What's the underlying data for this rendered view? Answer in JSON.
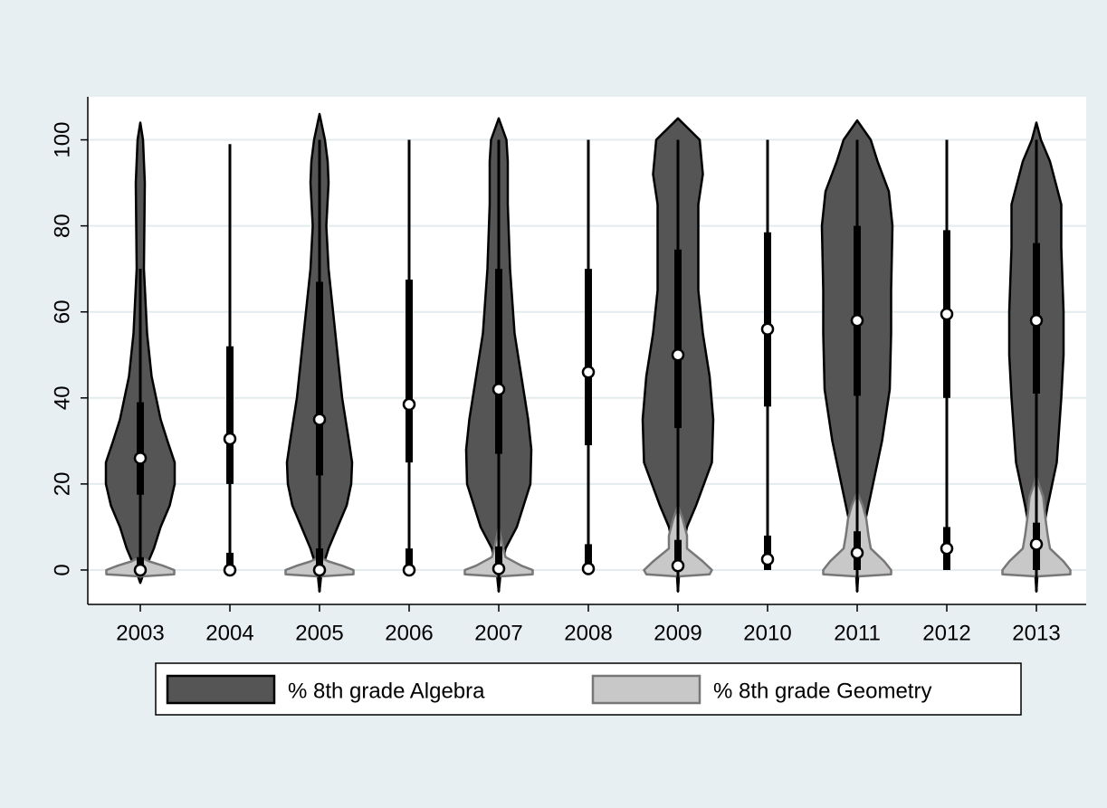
{
  "chart_data": {
    "type": "violin",
    "categories": [
      "2003",
      "2004",
      "2005",
      "2006",
      "2007",
      "2008",
      "2009",
      "2010",
      "2011",
      "2012",
      "2013"
    ],
    "ylim": [
      -8,
      110
    ],
    "yticks": [
      0,
      20,
      40,
      60,
      80,
      100
    ],
    "grid": true,
    "series": [
      {
        "name": "% 8th grade Algebra",
        "color": "#555555",
        "median": [
          26,
          30.5,
          35,
          38.5,
          42,
          46,
          50,
          56,
          58,
          59.5,
          58
        ],
        "q1": [
          17.5,
          20,
          22,
          25,
          27,
          29,
          33,
          38,
          40.5,
          40,
          41
        ],
        "q3": [
          39,
          52,
          67,
          67.5,
          70,
          70,
          74.5,
          78.5,
          80,
          79,
          76
        ],
        "min": [
          -1,
          0,
          -5,
          0,
          -5,
          0,
          -5,
          0,
          -5,
          0,
          -5
        ],
        "max": [
          70,
          99,
          100,
          100,
          100,
          100,
          100,
          100,
          100,
          100,
          100
        ],
        "density": [
          {
            "y": [
              -3,
              0,
              5,
              10,
              15,
              20,
              25,
              30,
              35,
              45,
              55,
              70,
              90,
              100,
              104
            ],
            "width": [
              0,
              0.1,
              0.3,
              0.45,
              0.65,
              0.76,
              0.76,
              0.6,
              0.45,
              0.25,
              0.15,
              0.08,
              0.1,
              0.06,
              0
            ]
          },
          null,
          {
            "y": [
              -5,
              0,
              5,
              10,
              15,
              20,
              25,
              30,
              40,
              50,
              60,
              70,
              80,
              90,
              95,
              100,
              106
            ],
            "width": [
              0,
              0.05,
              0.2,
              0.4,
              0.6,
              0.7,
              0.72,
              0.65,
              0.5,
              0.4,
              0.3,
              0.2,
              0.15,
              0.2,
              0.18,
              0.12,
              0
            ]
          },
          null,
          {
            "y": [
              -5,
              0,
              5,
              10,
              20,
              28,
              35,
              45,
              55,
              70,
              85,
              95,
              100,
              105
            ],
            "width": [
              0,
              0.05,
              0.15,
              0.4,
              0.7,
              0.72,
              0.65,
              0.5,
              0.35,
              0.25,
              0.2,
              0.2,
              0.17,
              0
            ]
          },
          null,
          {
            "y": [
              -5,
              0,
              5,
              10,
              15,
              25,
              35,
              45,
              55,
              65,
              75,
              85,
              92,
              100,
              105
            ],
            "width": [
              0,
              0.03,
              0.1,
              0.2,
              0.4,
              0.75,
              0.78,
              0.7,
              0.55,
              0.45,
              0.45,
              0.45,
              0.55,
              0.48,
              0
            ]
          },
          null,
          {
            "y": [
              -5,
              0,
              5,
              10,
              20,
              30,
              42,
              55,
              65,
              80,
              88,
              95,
              100,
              104.5
            ],
            "width": [
              0,
              0.03,
              0.05,
              0.15,
              0.35,
              0.55,
              0.72,
              0.75,
              0.75,
              0.78,
              0.7,
              0.45,
              0.3,
              0
            ]
          },
          null,
          {
            "y": [
              -5,
              0,
              5,
              15,
              25,
              40,
              50,
              60,
              75,
              85,
              95,
              100,
              104
            ],
            "width": [
              0,
              0.03,
              0.08,
              0.25,
              0.45,
              0.55,
              0.6,
              0.6,
              0.55,
              0.55,
              0.3,
              0.1,
              0
            ]
          }
        ]
      },
      {
        "name": "% 8th grade Geometry",
        "color": "#c8c8c8",
        "median": [
          0,
          0,
          0,
          0,
          0.3,
          0.3,
          1,
          2.5,
          4,
          5,
          6
        ],
        "q1": [
          0,
          0,
          0,
          0,
          0,
          0,
          0,
          0,
          0,
          0,
          0
        ],
        "q3": [
          3,
          4,
          5,
          5,
          5.5,
          6,
          7,
          8,
          9,
          10,
          11
        ],
        "min": [
          0,
          0,
          0,
          0,
          0,
          0,
          0,
          0,
          0,
          0,
          0
        ],
        "max": [
          3,
          10,
          8,
          13,
          10,
          16,
          17,
          20,
          19,
          25,
          22
        ],
        "density": [
          {
            "y": [
              -1.5,
              -1,
              0,
              1,
              2,
              3
            ],
            "width": [
              0,
              0.75,
              0.75,
              0.5,
              0.2,
              0
            ]
          },
          null,
          {
            "y": [
              -1.5,
              -1,
              0,
              1,
              2,
              3
            ],
            "width": [
              0,
              0.75,
              0.75,
              0.5,
              0.2,
              0
            ]
          },
          null,
          {
            "y": [
              -1.5,
              -1,
              0,
              1,
              3,
              6,
              10
            ],
            "width": [
              0,
              0.75,
              0.75,
              0.5,
              0.15,
              0.08,
              0
            ]
          },
          null,
          {
            "y": [
              -1.5,
              -1,
              0,
              2,
              5,
              8,
              12,
              15
            ],
            "width": [
              0,
              0.7,
              0.75,
              0.55,
              0.2,
              0.2,
              0.1,
              0
            ]
          },
          null,
          {
            "y": [
              -1.5,
              -1,
              0,
              2,
              5,
              8,
              12,
              15,
              18
            ],
            "width": [
              0,
              0.75,
              0.75,
              0.6,
              0.3,
              0.25,
              0.2,
              0.12,
              0
            ]
          },
          null,
          {
            "y": [
              -1.5,
              -1,
              0,
              2,
              5,
              8,
              12,
              17,
              20,
              22
            ],
            "width": [
              0,
              0.75,
              0.75,
              0.6,
              0.3,
              0.25,
              0.2,
              0.15,
              0.05,
              0
            ]
          }
        ]
      }
    ],
    "legend": "bottom"
  }
}
